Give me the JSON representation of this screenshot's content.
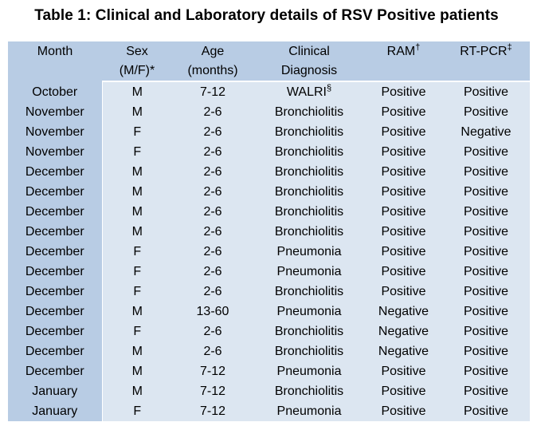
{
  "title": "Table 1: Clinical and Laboratory details of RSV Positive patients",
  "colors": {
    "page_bg": "#ffffff",
    "header_bg": "#b8cce4",
    "month_column_bg": "#b8cce4",
    "body_bg": "#dce6f1",
    "divider": "#ffffff",
    "text": "#000000"
  },
  "table": {
    "columns": [
      {
        "id": "month",
        "line1": "Month",
        "line2": "",
        "sup": ""
      },
      {
        "id": "sex",
        "line1": "Sex",
        "line2": "(M/F)*",
        "sup": ""
      },
      {
        "id": "age",
        "line1": "Age",
        "line2": "(months)",
        "sup": ""
      },
      {
        "id": "diagnosis",
        "line1": "Clinical",
        "line2": "Diagnosis",
        "sup": ""
      },
      {
        "id": "ram",
        "line1": "RAM",
        "line2": "",
        "sup": "†"
      },
      {
        "id": "rt-pcr",
        "line1": "RT-PCR",
        "line2": "",
        "sup": "‡"
      }
    ],
    "rows": [
      {
        "month": "October",
        "sex": "M",
        "age": "7-12",
        "diagnosis": "WALRI",
        "diagnosis_sup": "§",
        "ram": "Positive",
        "rt_pcr": "Positive"
      },
      {
        "month": "November",
        "sex": "M",
        "age": "2-6",
        "diagnosis": "Bronchiolitis",
        "diagnosis_sup": "",
        "ram": "Positive",
        "rt_pcr": "Positive"
      },
      {
        "month": "November",
        "sex": "F",
        "age": "2-6",
        "diagnosis": "Bronchiolitis",
        "diagnosis_sup": "",
        "ram": "Positive",
        "rt_pcr": "Negative"
      },
      {
        "month": "November",
        "sex": "F",
        "age": "2-6",
        "diagnosis": "Bronchiolitis",
        "diagnosis_sup": "",
        "ram": "Positive",
        "rt_pcr": "Positive"
      },
      {
        "month": "December",
        "sex": "M",
        "age": "2-6",
        "diagnosis": "Bronchiolitis",
        "diagnosis_sup": "",
        "ram": "Positive",
        "rt_pcr": "Positive"
      },
      {
        "month": "December",
        "sex": "M",
        "age": "2-6",
        "diagnosis": "Bronchiolitis",
        "diagnosis_sup": "",
        "ram": "Positive",
        "rt_pcr": "Positive"
      },
      {
        "month": "December",
        "sex": "M",
        "age": "2-6",
        "diagnosis": "Bronchiolitis",
        "diagnosis_sup": "",
        "ram": "Positive",
        "rt_pcr": "Positive"
      },
      {
        "month": "December",
        "sex": "M",
        "age": "2-6",
        "diagnosis": "Bronchiolitis",
        "diagnosis_sup": "",
        "ram": "Positive",
        "rt_pcr": "Positive"
      },
      {
        "month": "December",
        "sex": "F",
        "age": "2-6",
        "diagnosis": "Pneumonia",
        "diagnosis_sup": "",
        "ram": "Positive",
        "rt_pcr": "Positive"
      },
      {
        "month": "December",
        "sex": "F",
        "age": "2-6",
        "diagnosis": "Pneumonia",
        "diagnosis_sup": "",
        "ram": "Positive",
        "rt_pcr": "Positive"
      },
      {
        "month": "December",
        "sex": "F",
        "age": "2-6",
        "diagnosis": "Bronchiolitis",
        "diagnosis_sup": "",
        "ram": "Positive",
        "rt_pcr": "Positive"
      },
      {
        "month": "December",
        "sex": "M",
        "age": "13-60",
        "diagnosis": "Pneumonia",
        "diagnosis_sup": "",
        "ram": "Negative",
        "rt_pcr": "Positive"
      },
      {
        "month": "December",
        "sex": "F",
        "age": "2-6",
        "diagnosis": "Bronchiolitis",
        "diagnosis_sup": "",
        "ram": "Negative",
        "rt_pcr": "Positive"
      },
      {
        "month": "December",
        "sex": "M",
        "age": "2-6",
        "diagnosis": "Bronchiolitis",
        "diagnosis_sup": "",
        "ram": "Negative",
        "rt_pcr": "Positive"
      },
      {
        "month": "December",
        "sex": "M",
        "age": "7-12",
        "diagnosis": "Pneumonia",
        "diagnosis_sup": "",
        "ram": "Positive",
        "rt_pcr": "Positive"
      },
      {
        "month": "January",
        "sex": "M",
        "age": "7-12",
        "diagnosis": "Bronchiolitis",
        "diagnosis_sup": "",
        "ram": "Positive",
        "rt_pcr": "Positive"
      },
      {
        "month": "January",
        "sex": "F",
        "age": "7-12",
        "diagnosis": "Pneumonia",
        "diagnosis_sup": "",
        "ram": "Positive",
        "rt_pcr": "Positive"
      }
    ]
  }
}
